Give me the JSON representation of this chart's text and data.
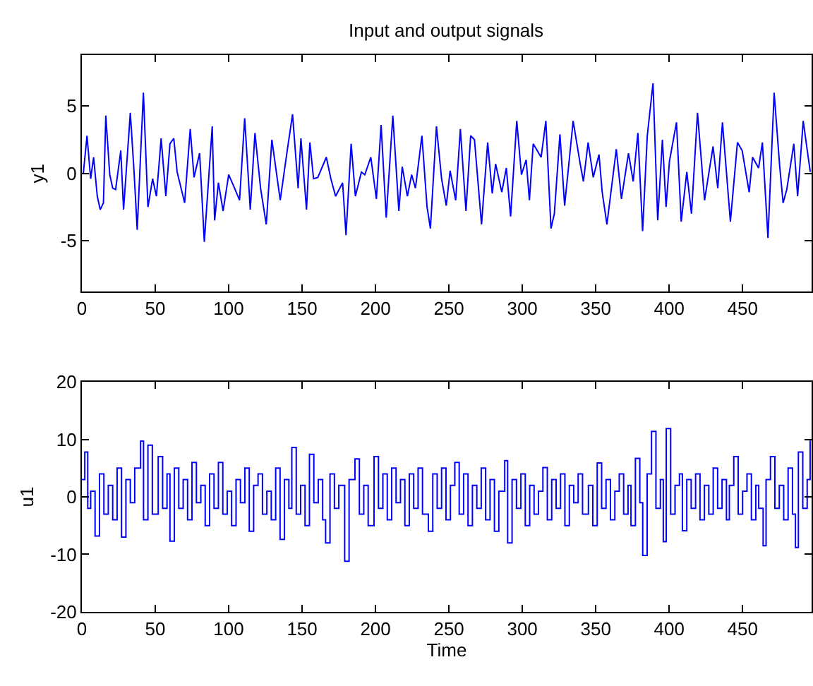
{
  "chart_data": [
    {
      "type": "line",
      "title": "Input and output signals",
      "ylabel": "y1",
      "xlim": [
        0,
        497
      ],
      "xticks": [
        0,
        50,
        100,
        150,
        200,
        250,
        300,
        350,
        400,
        450
      ],
      "ylim": [
        -8.8,
        8.8
      ],
      "yticks": [
        -5,
        0,
        5
      ],
      "series": [
        {
          "color": "#0000ff",
          "x": [
            1,
            3.5,
            6,
            8,
            10.5,
            12.5,
            14.7,
            16.3,
            19,
            21,
            23,
            26.5,
            28.4,
            33,
            35.5,
            37.7,
            41.9,
            45,
            48.2,
            50.8,
            54,
            57.2,
            60,
            62.6,
            64.9,
            70,
            73.8,
            76.4,
            80.2,
            83.4,
            88.8,
            90.4,
            93,
            96.2,
            100,
            104,
            107.4,
            110.9,
            114.7,
            117.9,
            121.7,
            125.6,
            129.4,
            135.1,
            139.6,
            143.5,
            147.3,
            149.2,
            153,
            155.3,
            157.8,
            160.7,
            166.5,
            169.6,
            172.8,
            177.6,
            179.9,
            183.4,
            186.3,
            190.4,
            192.7,
            196.8,
            200.6,
            203.8,
            207.3,
            211.8,
            215.9,
            218.2,
            221.7,
            224.6,
            227.2,
            231.6,
            235.1,
            237.4,
            241.5,
            245,
            248.2,
            250.8,
            254.6,
            257.8,
            261.6,
            264.8,
            267.4,
            272.2,
            276.4,
            279.5,
            281.8,
            286,
            289.1,
            292,
            296.2,
            299.4,
            302.6,
            304.8,
            307.4,
            312.8,
            316,
            319.5,
            321.8,
            325.6,
            328.8,
            331.4,
            334.6,
            339.4,
            341.6,
            344.8,
            348.3,
            352.2,
            354.4,
            357.6,
            364,
            367.5,
            372.3,
            375.5,
            378.7,
            381.9,
            385.1,
            389,
            392.2,
            395.4,
            397.9,
            400.2,
            405,
            408.2,
            412,
            415.2,
            419.3,
            424.1,
            429.9,
            433.1,
            436.3,
            441.7,
            446.5,
            449.7,
            454.5,
            456.8,
            460.9,
            463.5,
            467.3,
            471.5,
            475.3,
            477.6,
            480.1,
            484.9,
            487.5,
            491.3,
            496.1
          ],
          "values": [
            0,
            2.8,
            -0.4,
            1.2,
            -1.7,
            -2.7,
            -2.2,
            4.3,
            -0.1,
            -1.1,
            -1.2,
            1.7,
            -2.7,
            4.5,
            0.2,
            -4.2,
            6,
            -2.5,
            -0.4,
            -1.7,
            2.6,
            -1.7,
            2.2,
            2.6,
            0.1,
            -2.2,
            3.3,
            -0.3,
            1.5,
            -5.1,
            3.5,
            -3.5,
            -0.7,
            -2.8,
            -0.1,
            -1.1,
            -2,
            4.1,
            -2.7,
            3,
            -1.1,
            -3.8,
            2.5,
            -2,
            1.5,
            4.4,
            -1.1,
            2.6,
            -2.7,
            2.3,
            -0.4,
            -0.3,
            1.2,
            -0.4,
            -1.7,
            -0.7,
            -4.6,
            2.2,
            -1.7,
            0.1,
            -0.1,
            1.2,
            -1.9,
            3.6,
            -3.3,
            4.3,
            -2.8,
            0.5,
            -1.7,
            -0.1,
            -1.1,
            2.8,
            -2.5,
            -4.1,
            3.5,
            -0.4,
            -2.4,
            0.2,
            -2,
            3.3,
            -2.8,
            2.8,
            2.5,
            -3.8,
            2.3,
            -1.5,
            0.7,
            -1.4,
            0.4,
            -3.2,
            3.9,
            -0.1,
            1,
            -2,
            2.2,
            1.2,
            3.9,
            -4.1,
            -3,
            2.9,
            -2.4,
            0.4,
            3.9,
            0.7,
            -0.6,
            2.3,
            -0.3,
            1.4,
            -1.4,
            -3.8,
            1.8,
            -1.9,
            1.5,
            -0.6,
            3,
            -4.3,
            2.8,
            6.7,
            -3.5,
            2.5,
            -2.5,
            0.9,
            3.8,
            -3.6,
            0.1,
            -3,
            4.5,
            -2,
            2,
            -1.1,
            3.8,
            -3.6,
            2.3,
            1.7,
            -1.4,
            1.2,
            0.4,
            2.3,
            -4.8,
            6,
            0.5,
            -2.2,
            -1.2,
            2.2,
            -1.7,
            3.9,
            0.1
          ]
        }
      ]
    },
    {
      "type": "step",
      "xlabel": "Time",
      "ylabel": "u1",
      "xlim": [
        0,
        497
      ],
      "xticks": [
        0,
        50,
        100,
        150,
        200,
        250,
        300,
        350,
        400,
        450
      ],
      "ylim": [
        -20,
        20
      ],
      "yticks": [
        -20,
        -10,
        0,
        10,
        20
      ],
      "series": [
        {
          "color": "#0000ff",
          "x": [
            0,
            2,
            4,
            6,
            9,
            12,
            15,
            18,
            21,
            24,
            27,
            30,
            33,
            36,
            40,
            42,
            45,
            48,
            52,
            55,
            58,
            60,
            63,
            66,
            69,
            72,
            75,
            78,
            81,
            84,
            87,
            90,
            93,
            96,
            99,
            102,
            105,
            108,
            111,
            114,
            117,
            120,
            123,
            126,
            129,
            132,
            135,
            138,
            141,
            143,
            146,
            149,
            152,
            155,
            158,
            161,
            164,
            166,
            169,
            172,
            175,
            179,
            182,
            186,
            189,
            192,
            195,
            199,
            202,
            205,
            208,
            211,
            214,
            217,
            220,
            223,
            226,
            229,
            232,
            236,
            239,
            242,
            245,
            248,
            251,
            254,
            257,
            260,
            263,
            266,
            269,
            272,
            275,
            278,
            281,
            284,
            288,
            290,
            293,
            296,
            299,
            302,
            305,
            308,
            311,
            314,
            317,
            320,
            323,
            326,
            329,
            332,
            335,
            338,
            341,
            345,
            348,
            351,
            354,
            357,
            360,
            363,
            366,
            369,
            372,
            374,
            377,
            380,
            382,
            385,
            388,
            391,
            394,
            396,
            398,
            401,
            404,
            407,
            409,
            412,
            415,
            418,
            421,
            424,
            427,
            430,
            433,
            436,
            439,
            441,
            444,
            447,
            450,
            453,
            456,
            459,
            461,
            464,
            466,
            469,
            472,
            475,
            478,
            481,
            484,
            486,
            488,
            491,
            494,
            496
          ],
          "values": [
            3,
            7.8,
            -2,
            1,
            -6.8,
            4,
            -3,
            2,
            -4,
            5,
            -7,
            3,
            -1,
            5,
            9.7,
            -4,
            9,
            -3,
            7,
            -2,
            4,
            -7.7,
            5,
            -2,
            3,
            -4,
            6,
            -1,
            2,
            -5,
            4,
            -2,
            6,
            -3,
            1,
            -5,
            3,
            -1,
            5,
            -6,
            2,
            4,
            -3,
            1,
            -4,
            5,
            -7.4,
            3,
            -2,
            8.6,
            -3,
            2,
            -5,
            7.4,
            -1,
            3,
            -4,
            -8,
            4,
            -2,
            2,
            -11.2,
            3,
            6.6,
            -3,
            2,
            -5,
            7,
            -2,
            4,
            -4,
            5,
            -1,
            3,
            -5,
            4,
            -2,
            5,
            -3,
            -6,
            4,
            -2,
            5,
            -4,
            2,
            6,
            -3,
            4,
            -5,
            2,
            -2,
            5,
            -4,
            3,
            -6,
            1,
            6.3,
            -8,
            3,
            -2,
            4,
            -5,
            2,
            -3,
            1,
            5.1,
            -4,
            3,
            -2,
            4,
            -5,
            2,
            -1,
            4,
            -3,
            2,
            -5,
            5.9,
            -2,
            3,
            -4,
            1,
            4,
            -3,
            2,
            -5,
            6.7,
            -1,
            -10.2,
            4,
            11.4,
            -2,
            3,
            -7.8,
            11.9,
            -3,
            2,
            4,
            -5.9,
            3,
            -2,
            4,
            -4,
            2,
            -3,
            5,
            -2,
            3,
            -4,
            2,
            7,
            -3,
            1,
            4,
            -4,
            2,
            -2,
            -8.5,
            3,
            7,
            -2,
            2,
            -4,
            5,
            -3,
            -8.8,
            7.8,
            -2,
            3,
            9.8
          ]
        }
      ]
    }
  ]
}
